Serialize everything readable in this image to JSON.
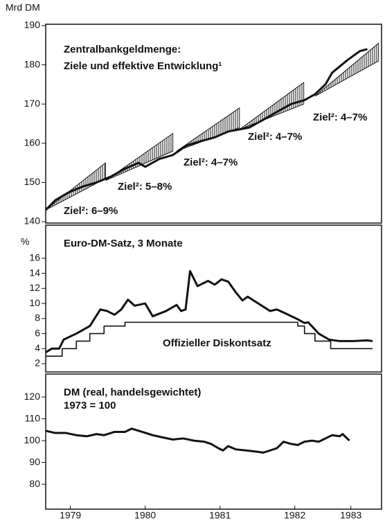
{
  "chart_data": [
    {
      "type": "line",
      "unit": "Mrd DM",
      "title": "Zentralbankgeldmenge:",
      "subtitle": "Ziele und effektive Entwicklung¹",
      "ylim": [
        139.65,
        190.35
      ],
      "yticks": [
        140,
        150,
        160,
        170,
        180,
        190
      ],
      "xlim": [
        1979.17,
        1983.66
      ],
      "series": [
        {
          "color": "#111111",
          "x": [
            1979.17,
            1979.3,
            1979.48,
            1979.67,
            1979.85,
            1980.04,
            1980.23,
            1980.41,
            1980.5,
            1980.69,
            1980.87,
            1981.06,
            1981.24,
            1981.43,
            1981.61,
            1981.75,
            1981.89,
            1982.08,
            1982.26,
            1982.45,
            1982.63,
            1982.77,
            1982.91,
            1983.0,
            1983.19,
            1983.37,
            1983.47
          ],
          "values": [
            143,
            145.5,
            147.5,
            149,
            150,
            151.5,
            153.5,
            155,
            154,
            156,
            157,
            159.5,
            160.5,
            161.5,
            163,
            163.5,
            164,
            166,
            168,
            170,
            171,
            172.5,
            175,
            178,
            181,
            183.5,
            184
          ]
        }
      ],
      "corridors": [
        {
          "label": "Ziel²: 6–9%",
          "x": [
            1979.17,
            1979.97
          ],
          "lower": [
            143,
            151
          ],
          "upper": [
            143,
            155
          ]
        },
        {
          "label": "Ziel²: 5–8%",
          "x": [
            1979.97,
            1980.87
          ],
          "lower": [
            150.5,
            158
          ],
          "upper": [
            150.5,
            162.5
          ]
        },
        {
          "label": "Ziel²: 4–7%",
          "x": [
            1980.92,
            1981.76
          ],
          "lower": [
            158,
            164
          ],
          "upper": [
            158,
            169
          ]
        },
        {
          "label": "Ziel²: 4–7%",
          "x": [
            1981.76,
            1982.62
          ],
          "lower": [
            163.5,
            170
          ],
          "upper": [
            163.5,
            175.5
          ]
        },
        {
          "label": "Ziel²: 4–7%",
          "x": [
            1982.77,
            1983.62
          ],
          "lower": [
            172,
            181
          ],
          "upper": [
            172,
            185.5
          ]
        }
      ]
    },
    {
      "type": "line",
      "unit": "%",
      "title": "Euro-DM-Satz, 3 Monate",
      "ylim": [
        0.9,
        20.4
      ],
      "yticks": [
        2,
        4,
        6,
        8,
        10,
        12,
        14,
        16
      ],
      "xlim": [
        1979.17,
        1983.66
      ],
      "series": [
        {
          "color": "#111111",
          "step": false,
          "x": [
            1979.17,
            1979.25,
            1979.35,
            1979.41,
            1979.58,
            1979.76,
            1979.9,
            1979.99,
            1980.09,
            1980.18,
            1980.27,
            1980.36,
            1980.5,
            1980.6,
            1980.78,
            1980.92,
            1980.98,
            1981.04,
            1981.1,
            1981.2,
            1981.34,
            1981.43,
            1981.52,
            1981.61,
            1981.71,
            1981.8,
            1981.87,
            1981.98,
            1982.17,
            1982.26,
            1982.35,
            1982.54,
            1982.63,
            1982.68,
            1982.82,
            1982.96,
            1983.1,
            1983.28,
            1983.47,
            1983.54
          ],
          "values": [
            3.5,
            4,
            4,
            5.2,
            6,
            7,
            9.2,
            9,
            8.5,
            9.2,
            10.5,
            9.7,
            10,
            8.3,
            9,
            9.8,
            9,
            9.2,
            14.3,
            12.3,
            13,
            12.5,
            13.2,
            12.9,
            11.5,
            10.4,
            10.9,
            10.2,
            9,
            9.2,
            8.8,
            7.9,
            7.4,
            7.5,
            6,
            5.2,
            5,
            5,
            5.1,
            5
          ]
        },
        {
          "name": "Offizieller Diskontsatz",
          "color": "#111111",
          "step": true,
          "x": [
            1979.17,
            1979.39,
            1979.58,
            1979.76,
            1979.95,
            1980.23,
            1982.54,
            1982.63,
            1982.77,
            1982.98,
            1983.54
          ],
          "values": [
            3,
            4,
            5,
            6,
            7,
            7.5,
            7,
            6,
            5,
            4,
            4
          ]
        }
      ]
    },
    {
      "type": "line",
      "title": "DM (real, handelsgewichtet)",
      "subtitle": "1973 = 100",
      "ylim": [
        68.6,
        130.5
      ],
      "yticks": [
        80,
        90,
        100,
        110,
        120
      ],
      "xlim": [
        1979.17,
        1983.66
      ],
      "xticks": [
        {
          "value": 1979.5,
          "label": "1979"
        },
        {
          "value": 1980.5,
          "label": "1980"
        },
        {
          "value": 1981.5,
          "label": "1981"
        },
        {
          "value": 1982.5,
          "label": "1982"
        },
        {
          "value": 1983.25,
          "label": "1983"
        }
      ],
      "series": [
        {
          "color": "#111111",
          "x": [
            1979.17,
            1979.3,
            1979.44,
            1979.58,
            1979.72,
            1979.85,
            1979.95,
            1980.09,
            1980.23,
            1980.32,
            1980.46,
            1980.6,
            1980.73,
            1980.87,
            1981.01,
            1981.15,
            1981.29,
            1981.38,
            1981.48,
            1981.54,
            1981.61,
            1981.71,
            1981.85,
            1981.98,
            1982.08,
            1982.17,
            1982.26,
            1982.35,
            1982.45,
            1982.54,
            1982.63,
            1982.73,
            1982.82,
            1982.91,
            1983.0,
            1983.1,
            1983.14,
            1983.23
          ],
          "values": [
            104.5,
            103.5,
            103.5,
            102.5,
            102,
            103,
            102.5,
            104,
            104,
            105.5,
            104,
            102.5,
            101.5,
            100.5,
            101,
            100,
            99.5,
            98.5,
            96.5,
            95.5,
            97.5,
            96,
            95.5,
            95,
            94.5,
            95.5,
            96.5,
            99.5,
            98.5,
            98,
            99.5,
            100,
            99.5,
            101,
            102.5,
            102,
            103,
            100
          ]
        }
      ]
    }
  ]
}
